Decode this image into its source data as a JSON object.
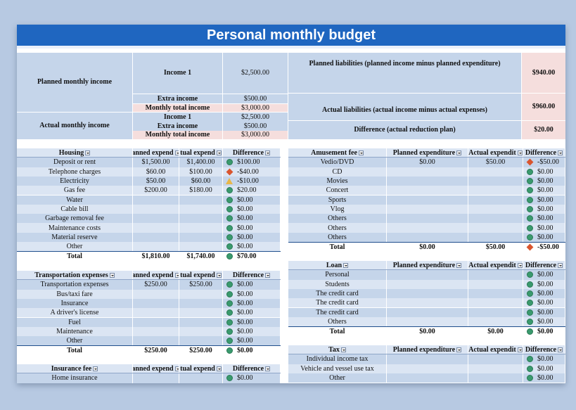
{
  "title": "Personal monthly budget",
  "summary": {
    "planned_label": "Planned monthly income",
    "actual_label": "Actual monthly income",
    "planned_rows": [
      {
        "label": "Income 1",
        "value": "$2,500.00"
      },
      {
        "label": "Extra income",
        "value": "$500.00"
      },
      {
        "label": "Monthly total income",
        "value": "$3,000.00"
      }
    ],
    "actual_rows": [
      {
        "label": "Income 1",
        "value": "$2,500.00"
      },
      {
        "label": "Extra income",
        "value": "$500.00"
      },
      {
        "label": "Monthly total income",
        "value": "$3,000.00"
      }
    ],
    "liabilities": [
      {
        "label": "Planned liabilities (planned income minus planned expenditure)",
        "value": "$940.00"
      },
      {
        "label": "Actual liabilities (actual income minus actual expenses)",
        "value": "$960.00"
      },
      {
        "label": "Difference (actual reduction plan)",
        "value": "$20.00"
      }
    ]
  },
  "colors": {
    "title_bar": "#1f66c0",
    "row_light": "#dbe5f3",
    "row_dark": "#c5d5ea",
    "pink": "#f5dedd",
    "good": "#3a9a6e",
    "bad": "#d9552e",
    "warn": "#e8b74a"
  },
  "left_tables": [
    {
      "headers": [
        "Housing",
        "anned expend",
        "tual expend",
        "Difference"
      ],
      "rows": [
        {
          "item": "Deposit or rent",
          "planned": "$1,500.00",
          "actual": "$1,400.00",
          "status": "circle",
          "diff": "$100.00"
        },
        {
          "item": "Telephone charges",
          "planned": "$60.00",
          "actual": "$100.00",
          "status": "diamond",
          "diff": "-$40.00"
        },
        {
          "item": "Electricity",
          "planned": "$50.00",
          "actual": "$60.00",
          "status": "triangle",
          "diff": "-$10.00"
        },
        {
          "item": "Gas fee",
          "planned": "$200.00",
          "actual": "$180.00",
          "status": "circle",
          "diff": "$20.00"
        },
        {
          "item": "Water",
          "planned": "",
          "actual": "",
          "status": "circle",
          "diff": "$0.00"
        },
        {
          "item": "Cable bill",
          "planned": "",
          "actual": "",
          "status": "circle",
          "diff": "$0.00"
        },
        {
          "item": "Garbage removal fee",
          "planned": "",
          "actual": "",
          "status": "circle",
          "diff": "$0.00"
        },
        {
          "item": "Maintenance costs",
          "planned": "",
          "actual": "",
          "status": "circle",
          "diff": "$0.00"
        },
        {
          "item": "Material reserve",
          "planned": "",
          "actual": "",
          "status": "circle",
          "diff": "$0.00"
        },
        {
          "item": "Other",
          "planned": "",
          "actual": "",
          "status": "circle",
          "diff": "$0.00"
        }
      ],
      "total": {
        "item": "Total",
        "planned": "$1,810.00",
        "actual": "$1,740.00",
        "status": "circle",
        "diff": "$70.00"
      }
    },
    {
      "headers": [
        "Transportation expenses",
        "anned expend",
        "tual expend",
        "Difference"
      ],
      "rows": [
        {
          "item": "Transportation expenses",
          "planned": "$250.00",
          "actual": "$250.00",
          "status": "circle",
          "diff": "$0.00"
        },
        {
          "item": "Bus/taxi fare",
          "planned": "",
          "actual": "",
          "status": "circle",
          "diff": "$0.00"
        },
        {
          "item": "Insurance",
          "planned": "",
          "actual": "",
          "status": "circle",
          "diff": "$0.00"
        },
        {
          "item": "A driver's license",
          "planned": "",
          "actual": "",
          "status": "circle",
          "diff": "$0.00"
        },
        {
          "item": "Fuel",
          "planned": "",
          "actual": "",
          "status": "circle",
          "diff": "$0.00"
        },
        {
          "item": "Maintenance",
          "planned": "",
          "actual": "",
          "status": "circle",
          "diff": "$0.00"
        },
        {
          "item": "Other",
          "planned": "",
          "actual": "",
          "status": "circle",
          "diff": "$0.00"
        }
      ],
      "total": {
        "item": "Total",
        "planned": "$250.00",
        "actual": "$250.00",
        "status": "circle",
        "diff": "$0.00"
      }
    },
    {
      "headers": [
        "Insurance fee",
        "anned expend",
        "tual expend",
        "Difference"
      ],
      "rows": [
        {
          "item": "Home insurance",
          "planned": "",
          "actual": "",
          "status": "circle",
          "diff": "$0.00"
        }
      ]
    }
  ],
  "right_tables": [
    {
      "headers": [
        "Amusement fee",
        "Planned expenditure",
        "Actual expendit",
        "Difference"
      ],
      "rows": [
        {
          "item": "Vedio/DVD",
          "planned": "$0.00",
          "actual": "$50.00",
          "status": "diamond",
          "diff": "-$50.00"
        },
        {
          "item": "CD",
          "planned": "",
          "actual": "",
          "status": "circle",
          "diff": "$0.00"
        },
        {
          "item": "Movies",
          "planned": "",
          "actual": "",
          "status": "circle",
          "diff": "$0.00"
        },
        {
          "item": "Concert",
          "planned": "",
          "actual": "",
          "status": "circle",
          "diff": "$0.00"
        },
        {
          "item": "Sports",
          "planned": "",
          "actual": "",
          "status": "circle",
          "diff": "$0.00"
        },
        {
          "item": "Vlog",
          "planned": "",
          "actual": "",
          "status": "circle",
          "diff": "$0.00"
        },
        {
          "item": "Others",
          "planned": "",
          "actual": "",
          "status": "circle",
          "diff": "$0.00"
        },
        {
          "item": "Others",
          "planned": "",
          "actual": "",
          "status": "circle",
          "diff": "$0.00"
        },
        {
          "item": "Others",
          "planned": "",
          "actual": "",
          "status": "circle",
          "diff": "$0.00"
        }
      ],
      "total": {
        "item": "Total",
        "planned": "$0.00",
        "actual": "$50.00",
        "status": "diamond",
        "diff": "-$50.00"
      }
    },
    {
      "headers": [
        "Loan",
        "Planned expenditure",
        "Actual expendit",
        "Difference"
      ],
      "rows": [
        {
          "item": "Personal",
          "planned": "",
          "actual": "",
          "status": "circle",
          "diff": "$0.00"
        },
        {
          "item": "Students",
          "planned": "",
          "actual": "",
          "status": "circle",
          "diff": "$0.00"
        },
        {
          "item": "The credit card",
          "planned": "",
          "actual": "",
          "status": "circle",
          "diff": "$0.00"
        },
        {
          "item": "The credit card",
          "planned": "",
          "actual": "",
          "status": "circle",
          "diff": "$0.00"
        },
        {
          "item": "The credit card",
          "planned": "",
          "actual": "",
          "status": "circle",
          "diff": "$0.00"
        },
        {
          "item": "Others",
          "planned": "",
          "actual": "",
          "status": "circle",
          "diff": "$0.00"
        }
      ],
      "total": {
        "item": "Total",
        "planned": "$0.00",
        "actual": "$0.00",
        "status": "circle",
        "diff": "$0.00"
      }
    },
    {
      "headers": [
        "Tax",
        "Planned expenditure",
        "Actual expendit",
        "Difference"
      ],
      "rows": [
        {
          "item": "Individual income tax",
          "planned": "",
          "actual": "",
          "status": "circle",
          "diff": "$0.00"
        },
        {
          "item": "Vehicle and vessel use tax",
          "planned": "",
          "actual": "",
          "status": "circle",
          "diff": "$0.00"
        },
        {
          "item": "Other",
          "planned": "",
          "actual": "",
          "status": "circle",
          "diff": "$0.00"
        }
      ]
    }
  ]
}
